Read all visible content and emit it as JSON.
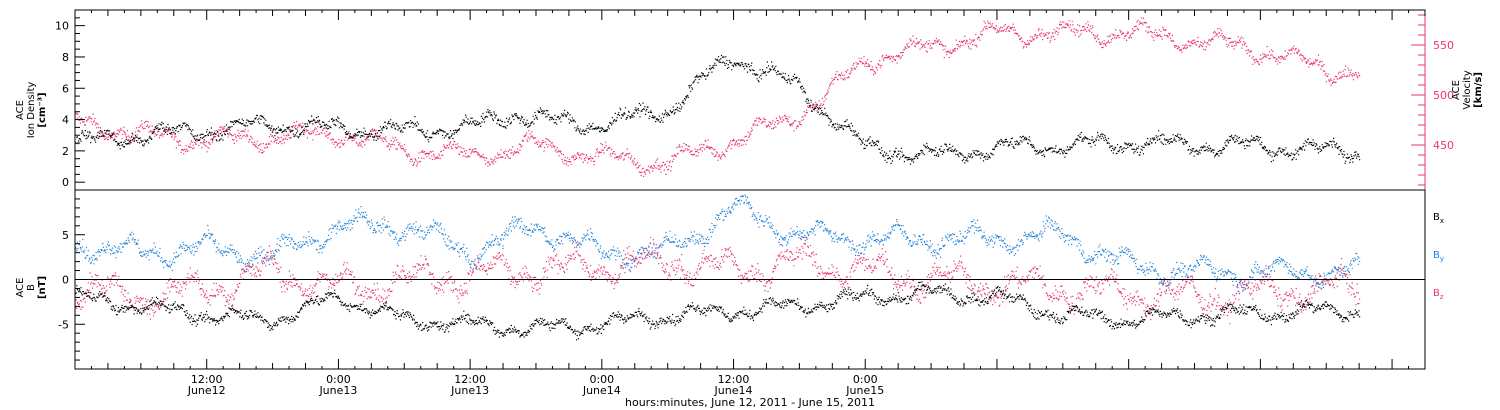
{
  "chart_data": [
    {
      "type": "scatter",
      "title": "",
      "ylabel_lines": [
        "ACE",
        "Ion Density",
        "[cm⁻³]"
      ],
      "y2label_lines": [
        "ACE",
        "Velocity",
        "[km/s]"
      ],
      "ylim": [
        -0.5,
        11
      ],
      "y_ticks": [
        0,
        2,
        4,
        6,
        8,
        10
      ],
      "y2lim": [
        405,
        585
      ],
      "y2_ticks": [
        450,
        500,
        550
      ],
      "series": [
        {
          "name": "Ion Density",
          "color": "#000000",
          "axis": "left",
          "trend": [
            [
              0,
              2.5
            ],
            [
              6,
              3
            ],
            [
              12,
              3.3
            ],
            [
              18,
              3.7
            ],
            [
              24,
              3.4
            ],
            [
              30,
              3.3
            ],
            [
              36,
              3.5
            ],
            [
              40,
              4.4
            ],
            [
              44,
              3.8
            ],
            [
              48,
              3.7
            ],
            [
              54,
              4.6
            ],
            [
              58,
              7
            ],
            [
              60,
              8
            ],
            [
              66,
              6
            ],
            [
              72,
              2.2
            ],
            [
              78,
              1.7
            ],
            [
              84,
              2.2
            ],
            [
              96,
              2.5
            ],
            [
              108,
              2.3
            ],
            [
              114,
              2
            ]
          ]
        },
        {
          "name": "Velocity",
          "color": "#e8366a",
          "axis": "right",
          "trend": [
            [
              0,
              474
            ],
            [
              6,
              460
            ],
            [
              12,
              455
            ],
            [
              18,
              458
            ],
            [
              24,
              462
            ],
            [
              30,
              445
            ],
            [
              36,
              438
            ],
            [
              42,
              450
            ],
            [
              48,
              437
            ],
            [
              54,
              432
            ],
            [
              60,
              455
            ],
            [
              64,
              470
            ],
            [
              68,
              495
            ],
            [
              72,
              535
            ],
            [
              78,
              548
            ],
            [
              84,
              562
            ],
            [
              96,
              563
            ],
            [
              108,
              545
            ],
            [
              114,
              525
            ]
          ]
        }
      ]
    },
    {
      "type": "scatter",
      "title": "",
      "ylabel_lines": [
        "ACE",
        "B",
        "[nT]"
      ],
      "ylim": [
        -10,
        10
      ],
      "y_ticks": [
        -5,
        0,
        5
      ],
      "legend": [
        {
          "label": "B",
          "sub": "x",
          "color": "#000000"
        },
        {
          "label": "B",
          "sub": "y",
          "color": "#2283d8"
        },
        {
          "label": "B",
          "sub": "z",
          "color": "#e8366a"
        }
      ],
      "series": [
        {
          "name": "Bx",
          "color": "#000000",
          "trend": [
            [
              0,
              -2
            ],
            [
              6,
              -3
            ],
            [
              12,
              -4
            ],
            [
              18,
              -4.5
            ],
            [
              24,
              -2
            ],
            [
              30,
              -4.5
            ],
            [
              36,
              -5
            ],
            [
              42,
              -5.5
            ],
            [
              48,
              -5
            ],
            [
              54,
              -4
            ],
            [
              60,
              -3.5
            ],
            [
              66,
              -3
            ],
            [
              72,
              -2
            ],
            [
              78,
              -1.5
            ],
            [
              84,
              -2
            ],
            [
              90,
              -4
            ],
            [
              96,
              -4.5
            ],
            [
              102,
              -4
            ],
            [
              114,
              -3.5
            ]
          ]
        },
        {
          "name": "By",
          "color": "#2283d8",
          "trend": [
            [
              0,
              4
            ],
            [
              6,
              3
            ],
            [
              12,
              3.5
            ],
            [
              18,
              2.5
            ],
            [
              24,
              6
            ],
            [
              30,
              6
            ],
            [
              36,
              3
            ],
            [
              42,
              6
            ],
            [
              48,
              3
            ],
            [
              54,
              3
            ],
            [
              60,
              8
            ],
            [
              66,
              5
            ],
            [
              72,
              4.5
            ],
            [
              78,
              4.5
            ],
            [
              84,
              4.5
            ],
            [
              90,
              5
            ],
            [
              96,
              1.5
            ],
            [
              102,
              0.8
            ],
            [
              114,
              0.8
            ]
          ]
        },
        {
          "name": "Bz",
          "color": "#e8366a",
          "trend": [
            [
              0,
              -1
            ],
            [
              6,
              -2
            ],
            [
              12,
              -1
            ],
            [
              18,
              1
            ],
            [
              24,
              -1
            ],
            [
              30,
              0
            ],
            [
              36,
              0.5
            ],
            [
              42,
              1
            ],
            [
              48,
              1.5
            ],
            [
              54,
              2
            ],
            [
              60,
              1
            ],
            [
              66,
              2
            ],
            [
              72,
              1
            ],
            [
              78,
              0
            ],
            [
              84,
              -0.5
            ],
            [
              90,
              -1
            ],
            [
              96,
              -1.5
            ],
            [
              102,
              -2
            ],
            [
              114,
              -1
            ]
          ]
        }
      ]
    }
  ],
  "x_axis": {
    "range_hours": [
      0,
      123
    ],
    "major_tick_hours": [
      12,
      24,
      36,
      48,
      60,
      72
    ],
    "major_tick_lines": [
      [
        "12:00",
        "June12"
      ],
      [
        "0:00",
        "June13"
      ],
      [
        "12:00",
        "June13"
      ],
      [
        "0:00",
        "June14"
      ],
      [
        "12:00",
        "June14"
      ],
      [
        "0:00",
        "June15"
      ]
    ],
    "xlabel": "hours:minutes, June 12, 2011 - June 15, 2011"
  }
}
